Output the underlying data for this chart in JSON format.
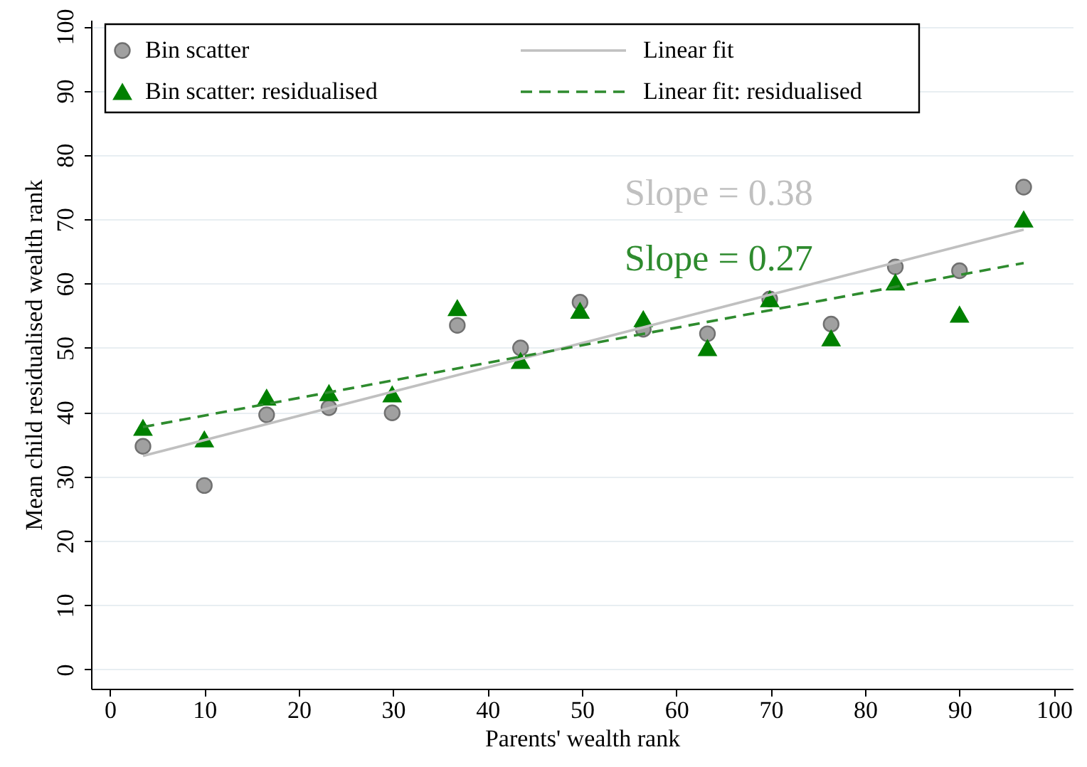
{
  "chart_data": {
    "type": "scatter",
    "xlabel": "Parents' wealth rank",
    "ylabel": "Mean child residualised wealth rank",
    "xlim": [
      -2,
      102
    ],
    "xticks": [
      0,
      10,
      20,
      30,
      40,
      50,
      60,
      70,
      80,
      90,
      100
    ],
    "ylim": [
      -3,
      101
    ],
    "yticks": [
      0,
      10,
      20,
      30,
      40,
      50,
      60,
      70,
      80,
      90,
      100
    ],
    "grid": "y",
    "legend": "top left",
    "series": [
      {
        "name": "Bin scatter",
        "marker": "circle",
        "color": "#a0a0a0",
        "x": [
          3.5,
          10,
          16.6,
          23.2,
          29.9,
          36.8,
          43.5,
          49.8,
          56.5,
          63.3,
          69.9,
          76.4,
          83.2,
          90,
          96.8
        ],
        "values": [
          34.7,
          28.6,
          39.6,
          40.7,
          39.9,
          53.5,
          50,
          57.1,
          52.9,
          52.2,
          57.6,
          53.7,
          62.6,
          62,
          75
        ]
      },
      {
        "name": "Bin scatter: residualised",
        "marker": "triangle",
        "color": "#008000",
        "x": [
          3.5,
          10,
          16.6,
          23.2,
          29.9,
          36.8,
          43.5,
          49.8,
          56.5,
          63.3,
          69.9,
          76.4,
          83.2,
          90,
          96.8
        ],
        "values": [
          37.6,
          35.8,
          42.3,
          43,
          42.8,
          56.2,
          48,
          55.8,
          54.5,
          50,
          57.6,
          51.5,
          60.2,
          55.2,
          70
        ]
      },
      {
        "name": "Linear fit",
        "type": "line",
        "line_style": "solid",
        "color": "#c0c0c0",
        "x": [
          3.5,
          96.8
        ],
        "values": [
          33.2,
          68.4
        ]
      },
      {
        "name": "Linear fit: residualised",
        "type": "line",
        "line_style": "dashed",
        "color": "#2e8b2e",
        "x": [
          3.5,
          96.8
        ],
        "values": [
          37.7,
          63.2
        ]
      }
    ],
    "annotations": [
      "Slope = 0.38",
      "Slope = 0.27"
    ]
  }
}
